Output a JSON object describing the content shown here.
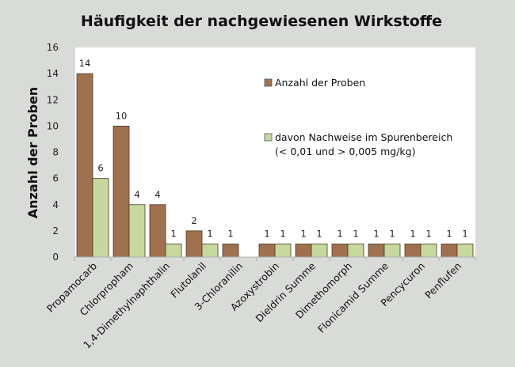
{
  "chart_data": {
    "type": "bar",
    "title": "Häufigkeit der nachgewiesenen Wirkstoffe",
    "xlabel": "",
    "ylabel": "Anzahl der Proben",
    "ylim": [
      0,
      16
    ],
    "yticks": [
      0,
      2,
      4,
      6,
      8,
      10,
      12,
      14,
      16
    ],
    "grid": false,
    "legend_position": "top-right",
    "categories": [
      "Propamocarb",
      "Chlorpropham",
      "1,4-Dimethylnaphthalin",
      "Flutolanil",
      "3-Chloranilin",
      "Azoxystrobin",
      "Dieldrin Summe",
      "Dimethomorph",
      "Flonicamid Summe",
      "Pencycuron",
      "Penflufen"
    ],
    "series": [
      {
        "name": "Anzahl der Proben",
        "color": "#a0714f",
        "values": [
          14,
          10,
          4,
          2,
          1,
          1,
          1,
          1,
          1,
          1,
          1
        ]
      },
      {
        "name": "davon Nachweise im Spurenbereich",
        "name_line2": "(< 0,01 und > 0,005 mg/kg)",
        "color": "#c6d89e",
        "values": [
          6,
          4,
          1,
          1,
          null,
          1,
          1,
          1,
          1,
          1,
          1
        ]
      }
    ]
  }
}
